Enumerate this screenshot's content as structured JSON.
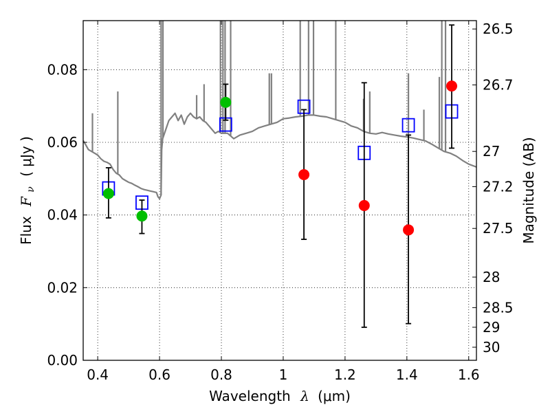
{
  "chart_data": {
    "type": "scatter",
    "title": "",
    "xlabel": "Wavelength",
    "xlabel_math": "λ",
    "xlabel_unit": "(μm)",
    "ylabel": "Flux",
    "ylabel_math": "F",
    "ylabel_math_sub": "ν",
    "ylabel_unit": "( μJy )",
    "y2label": "Magnitude (AB)",
    "xlim": [
      0.353,
      1.625
    ],
    "ylim": [
      0.0,
      0.0935
    ],
    "grid": true,
    "xticks": [
      0.4,
      0.6,
      0.8,
      1.0,
      1.2,
      1.4,
      1.6
    ],
    "xtick_labels": [
      "0.4",
      "0.6",
      "0.8",
      "1",
      "1.2",
      "1.4",
      "1.6"
    ],
    "yticks": [
      0.0,
      0.02,
      0.04,
      0.06,
      0.08
    ],
    "ytick_labels": [
      "0.00",
      "0.02",
      "0.04",
      "0.06",
      "0.08"
    ],
    "y2ticks": [
      {
        "label": "26.5",
        "flux": 0.0912
      },
      {
        "label": "26.7",
        "flux": 0.0758
      },
      {
        "label": "27",
        "flux": 0.0575
      },
      {
        "label": "27.2",
        "flux": 0.0478
      },
      {
        "label": "27.5",
        "flux": 0.0363
      },
      {
        "label": "28",
        "flux": 0.0229
      },
      {
        "label": "28.5",
        "flux": 0.0145
      },
      {
        "label": "29",
        "flux": 0.0091
      },
      {
        "label": "30",
        "flux": 0.0036
      }
    ],
    "series": [
      {
        "name": "model spectrum",
        "kind": "line",
        "color": "#808080",
        "x": [
          0.353,
          0.36,
          0.37,
          0.38,
          0.39,
          0.4,
          0.41,
          0.42,
          0.43,
          0.44,
          0.45,
          0.46,
          0.47,
          0.48,
          0.49,
          0.5,
          0.51,
          0.52,
          0.53,
          0.54,
          0.55,
          0.56,
          0.57,
          0.58,
          0.59,
          0.595,
          0.6,
          0.605,
          0.607,
          0.61,
          0.62,
          0.63,
          0.64,
          0.65,
          0.66,
          0.67,
          0.68,
          0.69,
          0.7,
          0.71,
          0.72,
          0.73,
          0.74,
          0.75,
          0.76,
          0.77,
          0.78,
          0.79,
          0.8,
          0.82,
          0.84,
          0.86,
          0.88,
          0.9,
          0.92,
          0.94,
          0.96,
          0.98,
          1.0,
          1.02,
          1.04,
          1.06,
          1.08,
          1.1,
          1.12,
          1.14,
          1.16,
          1.18,
          1.2,
          1.22,
          1.24,
          1.26,
          1.28,
          1.3,
          1.32,
          1.34,
          1.36,
          1.38,
          1.4,
          1.42,
          1.44,
          1.46,
          1.48,
          1.5,
          1.52,
          1.54,
          1.56,
          1.58,
          1.6,
          1.625
        ],
        "y": [
          0.0605,
          0.0595,
          0.058,
          0.0575,
          0.057,
          0.0565,
          0.0555,
          0.0548,
          0.0545,
          0.054,
          0.0525,
          0.0515,
          0.051,
          0.05,
          0.0495,
          0.049,
          0.0487,
          0.0482,
          0.0478,
          0.0473,
          0.047,
          0.0468,
          0.0466,
          0.0464,
          0.0462,
          0.045,
          0.0445,
          0.0455,
          0.058,
          0.061,
          0.0635,
          0.066,
          0.067,
          0.068,
          0.066,
          0.0675,
          0.065,
          0.067,
          0.068,
          0.067,
          0.0665,
          0.067,
          0.066,
          0.0655,
          0.0645,
          0.0635,
          0.0625,
          0.063,
          0.0625,
          0.0625,
          0.061,
          0.062,
          0.0625,
          0.063,
          0.064,
          0.0645,
          0.065,
          0.0655,
          0.0665,
          0.0667,
          0.067,
          0.0672,
          0.0675,
          0.0675,
          0.0672,
          0.067,
          0.0665,
          0.066,
          0.0655,
          0.0645,
          0.064,
          0.063,
          0.0625,
          0.0623,
          0.0627,
          0.0623,
          0.062,
          0.0617,
          0.0615,
          0.0612,
          0.0608,
          0.0604,
          0.0595,
          0.0585,
          0.0575,
          0.057,
          0.0562,
          0.055,
          0.054,
          0.0532
        ]
      },
      {
        "name": "model spectrum emission lines",
        "kind": "spikes",
        "color": "#808080",
        "x": [
          0.383,
          0.465,
          0.605,
          0.611,
          0.72,
          0.744,
          0.797,
          0.805,
          0.812,
          0.83,
          0.955,
          0.962,
          1.055,
          1.082,
          1.098,
          1.17,
          1.26,
          1.28,
          1.405,
          1.455,
          1.505,
          1.513,
          1.525
        ],
        "y": [
          0.068,
          0.074,
          0.0935,
          0.0935,
          0.073,
          0.076,
          0.0935,
          0.0935,
          0.0935,
          0.0935,
          0.079,
          0.079,
          0.0935,
          0.0935,
          0.0935,
          0.0935,
          0.072,
          0.074,
          0.079,
          0.069,
          0.078,
          0.0935,
          0.0935
        ]
      },
      {
        "name": "measured flux (green)",
        "kind": "points",
        "marker": "circle",
        "color": "#00bf00",
        "x": [
          0.435,
          0.543,
          0.814
        ],
        "y": [
          0.0459,
          0.0397,
          0.071
        ],
        "err_low": [
          0.0392,
          0.0349,
          0.0661
        ],
        "err_high": [
          0.053,
          0.0441,
          0.076
        ]
      },
      {
        "name": "measured flux (red)",
        "kind": "points",
        "marker": "circle",
        "color": "#ff0000",
        "x": [
          1.067,
          1.262,
          1.405,
          1.545
        ],
        "y": [
          0.0511,
          0.0426,
          0.0359,
          0.0755
        ],
        "err_low": [
          0.0333,
          0.0091,
          0.0101,
          0.0584
        ],
        "err_high": [
          0.069,
          0.0764,
          0.062,
          0.0923
        ]
      },
      {
        "name": "model flux",
        "kind": "points",
        "marker": "square",
        "color": "#0000ff",
        "x": [
          0.435,
          0.543,
          0.814,
          1.067,
          1.262,
          1.405,
          1.545
        ],
        "y": [
          0.0473,
          0.0434,
          0.0649,
          0.0698,
          0.0571,
          0.0647,
          0.0685
        ]
      }
    ]
  }
}
